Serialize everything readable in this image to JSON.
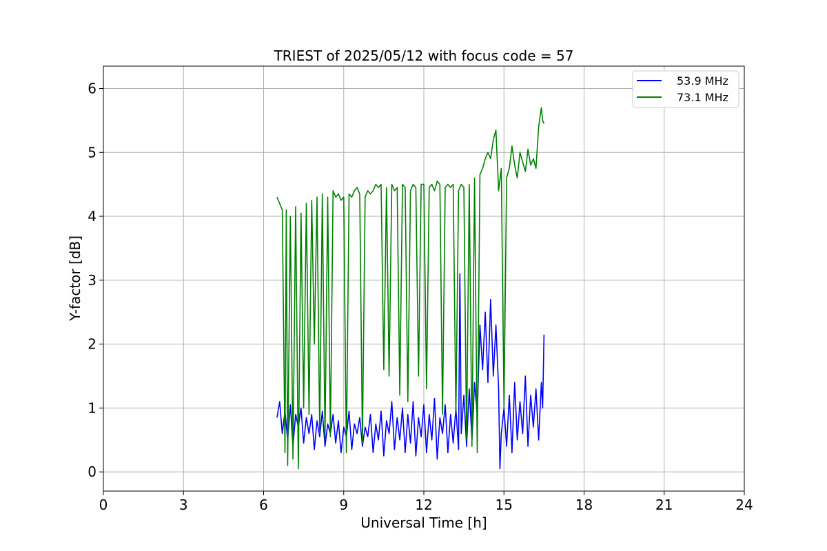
{
  "chart_data": {
    "type": "line",
    "title": "TRIEST of 2025/05/12 with focus code = 57",
    "xlabel": "Universal Time [h]",
    "ylabel": "Y-factor [dB]",
    "xlim": [
      0,
      24
    ],
    "ylim": [
      -0.3,
      6.35
    ],
    "xticks": [
      0,
      3,
      6,
      9,
      12,
      15,
      18,
      21,
      24
    ],
    "yticks": [
      0,
      1,
      2,
      3,
      4,
      5,
      6
    ],
    "grid": true,
    "legend_position": "top-right",
    "series": [
      {
        "name": "53.9 MHz",
        "color": "#0000ff",
        "x": [
          6.5,
          6.6,
          6.7,
          6.8,
          6.9,
          7.0,
          7.1,
          7.2,
          7.3,
          7.4,
          7.5,
          7.6,
          7.7,
          7.8,
          7.9,
          8.0,
          8.1,
          8.2,
          8.3,
          8.4,
          8.5,
          8.6,
          8.7,
          8.8,
          8.9,
          9.0,
          9.1,
          9.2,
          9.3,
          9.4,
          9.5,
          9.6,
          9.7,
          9.8,
          9.9,
          10.0,
          10.1,
          10.2,
          10.3,
          10.4,
          10.5,
          10.6,
          10.7,
          10.8,
          10.9,
          11.0,
          11.1,
          11.2,
          11.3,
          11.4,
          11.5,
          11.6,
          11.7,
          11.8,
          11.9,
          12.0,
          12.1,
          12.2,
          12.3,
          12.4,
          12.5,
          12.6,
          12.7,
          12.8,
          12.9,
          13.0,
          13.1,
          13.2,
          13.3,
          13.35,
          13.4,
          13.5,
          13.6,
          13.7,
          13.8,
          13.9,
          14.0,
          14.1,
          14.2,
          14.3,
          14.4,
          14.5,
          14.6,
          14.7,
          14.8,
          14.85,
          14.9,
          15.0,
          15.1,
          15.2,
          15.3,
          15.4,
          15.5,
          15.6,
          15.7,
          15.8,
          15.9,
          16.0,
          16.1,
          16.2,
          16.3,
          16.4,
          16.45,
          16.5
        ],
        "y": [
          0.85,
          1.1,
          0.6,
          0.95,
          0.5,
          1.05,
          0.4,
          0.9,
          0.7,
          1.0,
          0.45,
          0.85,
          0.6,
          0.9,
          0.35,
          0.8,
          0.55,
          0.95,
          0.4,
          0.75,
          0.6,
          0.9,
          0.45,
          0.8,
          0.3,
          0.7,
          0.55,
          0.95,
          0.35,
          0.75,
          0.6,
          0.85,
          0.4,
          0.7,
          0.55,
          0.9,
          0.3,
          0.75,
          0.5,
          0.95,
          0.25,
          0.8,
          0.6,
          1.1,
          0.35,
          0.85,
          0.5,
          1.0,
          0.3,
          0.9,
          0.45,
          1.1,
          0.25,
          0.85,
          0.55,
          1.05,
          0.3,
          0.9,
          0.5,
          1.15,
          0.2,
          0.85,
          0.6,
          1.05,
          0.3,
          0.9,
          0.45,
          1.0,
          0.35,
          3.1,
          0.6,
          1.2,
          0.4,
          1.3,
          0.5,
          1.4,
          0.9,
          2.3,
          1.6,
          2.5,
          1.4,
          2.7,
          1.5,
          2.3,
          1.3,
          0.05,
          0.6,
          1.0,
          0.4,
          1.2,
          0.3,
          1.4,
          0.5,
          1.1,
          0.6,
          1.5,
          0.4,
          1.2,
          0.7,
          1.3,
          0.5,
          1.4,
          1.0,
          2.15
        ],
        "label_value_texts": []
      },
      {
        "name": "73.1 MHz",
        "color": "#008000",
        "x": [
          6.5,
          6.6,
          6.7,
          6.8,
          6.85,
          6.9,
          7.0,
          7.1,
          7.2,
          7.3,
          7.4,
          7.5,
          7.6,
          7.7,
          7.8,
          7.9,
          8.0,
          8.1,
          8.2,
          8.3,
          8.4,
          8.5,
          8.6,
          8.7,
          8.8,
          8.9,
          9.0,
          9.1,
          9.2,
          9.3,
          9.4,
          9.5,
          9.6,
          9.7,
          9.8,
          9.9,
          10.0,
          10.1,
          10.2,
          10.3,
          10.4,
          10.5,
          10.6,
          10.7,
          10.8,
          10.9,
          11.0,
          11.1,
          11.2,
          11.3,
          11.4,
          11.5,
          11.6,
          11.7,
          11.8,
          11.9,
          12.0,
          12.1,
          12.2,
          12.3,
          12.4,
          12.5,
          12.6,
          12.7,
          12.8,
          12.9,
          13.0,
          13.1,
          13.2,
          13.3,
          13.4,
          13.5,
          13.6,
          13.7,
          13.8,
          13.9,
          14.0,
          14.1,
          14.2,
          14.3,
          14.4,
          14.5,
          14.6,
          14.7,
          14.8,
          14.9,
          15.0,
          15.1,
          15.2,
          15.3,
          15.4,
          15.5,
          15.6,
          15.7,
          15.8,
          15.9,
          16.0,
          16.1,
          16.2,
          16.3,
          16.4,
          16.45,
          16.5
        ],
        "y": [
          4.3,
          4.2,
          4.1,
          0.3,
          4.1,
          0.1,
          4.0,
          0.2,
          4.15,
          0.05,
          4.05,
          1.0,
          4.2,
          0.9,
          4.25,
          2.0,
          4.3,
          0.6,
          4.35,
          0.5,
          4.3,
          0.55,
          4.4,
          4.3,
          4.35,
          4.25,
          4.3,
          0.3,
          4.35,
          4.3,
          4.4,
          4.45,
          4.35,
          0.45,
          4.3,
          4.4,
          4.35,
          4.4,
          4.5,
          4.45,
          4.5,
          1.6,
          4.45,
          1.5,
          4.5,
          4.4,
          4.45,
          1.2,
          4.5,
          4.45,
          1.1,
          4.4,
          4.5,
          4.45,
          1.5,
          4.5,
          4.5,
          1.3,
          4.45,
          4.5,
          4.4,
          4.55,
          4.5,
          0.9,
          4.45,
          4.5,
          4.45,
          4.5,
          0.9,
          4.4,
          4.5,
          4.45,
          0.5,
          4.5,
          0.4,
          4.6,
          0.3,
          4.65,
          4.75,
          4.9,
          5.0,
          4.9,
          5.2,
          5.35,
          4.4,
          4.75,
          1.0,
          4.6,
          4.75,
          5.1,
          4.8,
          4.6,
          5.0,
          4.85,
          4.7,
          5.05,
          4.8,
          4.9,
          4.75,
          5.4,
          5.7,
          5.5,
          5.45
        ],
        "label_value_texts": []
      }
    ]
  }
}
